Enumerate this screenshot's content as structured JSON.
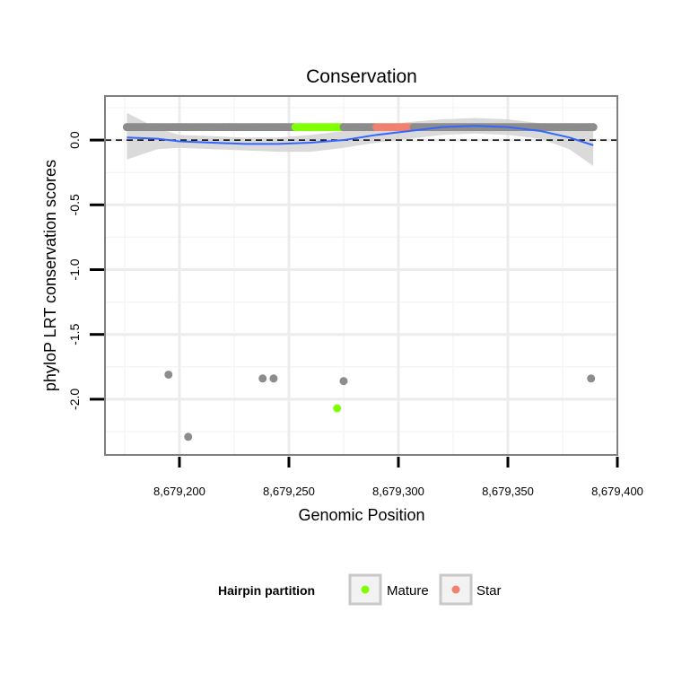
{
  "chart_data": {
    "type": "scatter",
    "title": "Conservation",
    "xlabel": "Genomic Position",
    "ylabel": "phyloP LRT conservation scores",
    "xlim": [
      8679166,
      8679400
    ],
    "ylim": [
      -2.43,
      0.34
    ],
    "x_ticks": [
      8679200,
      8679250,
      8679300,
      8679350,
      8679400
    ],
    "x_tick_labels": [
      "8,679,200",
      "8,679,250",
      "8,679,300",
      "8,679,350",
      "8,679,400"
    ],
    "y_ticks": [
      0.0,
      -0.5,
      -1.0,
      -1.5,
      -2.0
    ],
    "y_tick_labels": [
      "0.0",
      "-0.5",
      "-1.0",
      "-1.5",
      "-2.0"
    ],
    "reference_line": {
      "y": 0,
      "style": "dashed"
    },
    "grid": true,
    "legend": {
      "title": "Hairpin partition",
      "position": "bottom",
      "entries": [
        {
          "label": "Mature",
          "color": "#80ff00"
        },
        {
          "label": "Star",
          "color": "#f08070"
        }
      ]
    },
    "colors": {
      "other": "#8c8c8c",
      "Mature": "#80ff00",
      "Star": "#f08070",
      "smooth": "#3366ff",
      "ribbon": "#d3d3d3"
    },
    "band": {
      "x_start": 8679176,
      "x_end": 8679389,
      "y": 0.1,
      "note": "one point per base; partition segments below"
    },
    "band_segments": [
      {
        "partition": "other",
        "x_start": 8679176,
        "x_end": 8679252
      },
      {
        "partition": "Mature",
        "x_start": 8679253,
        "x_end": 8679274
      },
      {
        "partition": "other",
        "x_start": 8679275,
        "x_end": 8679289
      },
      {
        "partition": "Star",
        "x_start": 8679290,
        "x_end": 8679306
      },
      {
        "partition": "other",
        "x_start": 8679307,
        "x_end": 8679389
      }
    ],
    "outliers": [
      {
        "x": 8679195,
        "y": -1.81,
        "partition": "other"
      },
      {
        "x": 8679204,
        "y": -2.29,
        "partition": "other"
      },
      {
        "x": 8679238,
        "y": -1.84,
        "partition": "other"
      },
      {
        "x": 8679243,
        "y": -1.84,
        "partition": "other"
      },
      {
        "x": 8679272,
        "y": -2.07,
        "partition": "Mature"
      },
      {
        "x": 8679275,
        "y": -1.86,
        "partition": "other"
      },
      {
        "x": 8679388,
        "y": -1.84,
        "partition": "other"
      }
    ],
    "smooth": [
      {
        "x": 8679176,
        "y": 0.02,
        "lo": -0.15,
        "hi": 0.21
      },
      {
        "x": 8679190,
        "y": 0.01,
        "lo": -0.07,
        "hi": 0.09
      },
      {
        "x": 8679200,
        "y": -0.01,
        "lo": -0.06,
        "hi": 0.04
      },
      {
        "x": 8679215,
        "y": -0.02,
        "lo": -0.07,
        "hi": 0.03
      },
      {
        "x": 8679230,
        "y": -0.03,
        "lo": -0.08,
        "hi": 0.02
      },
      {
        "x": 8679245,
        "y": -0.03,
        "lo": -0.09,
        "hi": 0.02
      },
      {
        "x": 8679260,
        "y": -0.02,
        "lo": -0.09,
        "hi": 0.04
      },
      {
        "x": 8679275,
        "y": 0.0,
        "lo": -0.06,
        "hi": 0.07
      },
      {
        "x": 8679290,
        "y": 0.04,
        "lo": -0.02,
        "hi": 0.1
      },
      {
        "x": 8679305,
        "y": 0.07,
        "lo": 0.01,
        "hi": 0.14
      },
      {
        "x": 8679320,
        "y": 0.1,
        "lo": 0.04,
        "hi": 0.16
      },
      {
        "x": 8679335,
        "y": 0.11,
        "lo": 0.05,
        "hi": 0.17
      },
      {
        "x": 8679350,
        "y": 0.1,
        "lo": 0.04,
        "hi": 0.16
      },
      {
        "x": 8679365,
        "y": 0.07,
        "lo": 0.01,
        "hi": 0.13
      },
      {
        "x": 8679378,
        "y": 0.02,
        "lo": -0.07,
        "hi": 0.11
      },
      {
        "x": 8679389,
        "y": -0.04,
        "lo": -0.2,
        "hi": 0.12
      }
    ]
  }
}
